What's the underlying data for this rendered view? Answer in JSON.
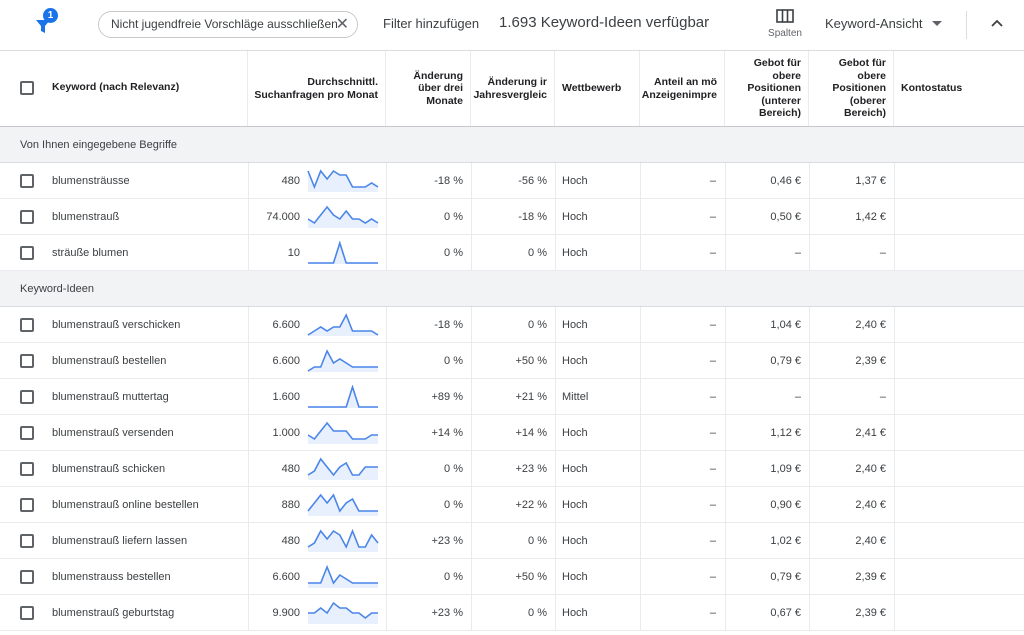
{
  "toolbar": {
    "filter_badge": "1",
    "chip_label": "Nicht jugendfreie Vorschläge ausschließen",
    "chip_close": "✕",
    "add_filter": "Filter hinzufügen",
    "ideas_count": "1.693 Keyword-Ideen verfügbar",
    "columns_label": "Spalten",
    "view_label": "Keyword-Ansicht"
  },
  "colors": {
    "accent": "#1a73e8",
    "sparkline": "#4a86e8"
  },
  "header": {
    "keyword": "Keyword (nach Relevanz)",
    "avg_searches": [
      "Durchschnittl.",
      "Suchanfragen pro Monat"
    ],
    "change_3m": [
      "Änderung",
      "über drei",
      "Monate"
    ],
    "change_yoy": [
      "Änderung ir",
      "Jahresvergleic"
    ],
    "competition": "Wettbewerb",
    "ad_share": [
      "Anteil an mö",
      "Anzeigenimpre"
    ],
    "bid_low": [
      "Gebot für",
      "obere",
      "Positionen",
      "(unterer",
      "Bereich)"
    ],
    "bid_high": [
      "Gebot für",
      "obere",
      "Positionen",
      "(oberer",
      "Bereich)"
    ],
    "account_status": "Kontostatus"
  },
  "sections": [
    {
      "title": "Von Ihnen eingegebene Begriffe",
      "rows": [
        {
          "keyword": "blumensträusse",
          "searches": "480",
          "trend": [
            5,
            1,
            5,
            3,
            5,
            4,
            4,
            1,
            1,
            1,
            2,
            1
          ],
          "change_3m": "-18 %",
          "change_yoy": "-56 %",
          "competition": "Hoch",
          "ad_share": "–",
          "bid_low": "0,46 €",
          "bid_high": "1,37 €"
        },
        {
          "keyword": "blumenstrauß",
          "searches": "74.000",
          "trend": [
            2,
            1,
            3,
            5,
            3,
            2,
            4,
            2,
            2,
            1,
            2,
            1
          ],
          "change_3m": "0 %",
          "change_yoy": "-18 %",
          "competition": "Hoch",
          "ad_share": "–",
          "bid_low": "0,50 €",
          "bid_high": "1,42 €"
        },
        {
          "keyword": "sträuße blumen",
          "searches": "10",
          "trend": [
            0,
            0,
            0,
            0,
            0,
            5,
            0,
            0,
            0,
            0,
            0,
            0
          ],
          "change_3m": "0 %",
          "change_yoy": "0 %",
          "competition": "Hoch",
          "ad_share": "–",
          "bid_low": "–",
          "bid_high": "–"
        }
      ]
    },
    {
      "title": "Keyword-Ideen",
      "rows": [
        {
          "keyword": "blumenstrauß verschicken",
          "searches": "6.600",
          "trend": [
            0,
            1,
            2,
            1,
            2,
            2,
            5,
            1,
            1,
            1,
            1,
            0
          ],
          "change_3m": "-18 %",
          "change_yoy": "0 %",
          "competition": "Hoch",
          "ad_share": "–",
          "bid_low": "1,04 €",
          "bid_high": "2,40 €"
        },
        {
          "keyword": "blumenstrauß bestellen",
          "searches": "6.600",
          "trend": [
            0,
            1,
            1,
            5,
            2,
            3,
            2,
            1,
            1,
            1,
            1,
            1
          ],
          "change_3m": "0 %",
          "change_yoy": "+50 %",
          "competition": "Hoch",
          "ad_share": "–",
          "bid_low": "0,79 €",
          "bid_high": "2,39 €"
        },
        {
          "keyword": "blumenstrauß muttertag",
          "searches": "1.600",
          "trend": [
            0,
            0,
            0,
            0,
            0,
            0,
            0,
            5,
            0,
            0,
            0,
            0
          ],
          "change_3m": "+89 %",
          "change_yoy": "+21 %",
          "competition": "Mittel",
          "ad_share": "–",
          "bid_low": "–",
          "bid_high": "–"
        },
        {
          "keyword": "blumenstrauß versenden",
          "searches": "1.000",
          "trend": [
            2,
            1,
            3,
            5,
            3,
            3,
            3,
            1,
            1,
            1,
            2,
            2
          ],
          "change_3m": "+14 %",
          "change_yoy": "+14 %",
          "competition": "Hoch",
          "ad_share": "–",
          "bid_low": "1,12 €",
          "bid_high": "2,41 €"
        },
        {
          "keyword": "blumenstrauß schicken",
          "searches": "480",
          "trend": [
            1,
            2,
            5,
            3,
            1,
            3,
            4,
            1,
            1,
            3,
            3,
            3
          ],
          "change_3m": "0 %",
          "change_yoy": "+23 %",
          "competition": "Hoch",
          "ad_share": "–",
          "bid_low": "1,09 €",
          "bid_high": "2,40 €"
        },
        {
          "keyword": "blumenstrauß online bestellen",
          "searches": "880",
          "trend": [
            1,
            3,
            5,
            3,
            5,
            1,
            3,
            4,
            1,
            1,
            1,
            1
          ],
          "change_3m": "0 %",
          "change_yoy": "+22 %",
          "competition": "Hoch",
          "ad_share": "–",
          "bid_low": "0,90 €",
          "bid_high": "2,40 €"
        },
        {
          "keyword": "blumenstrauß liefern lassen",
          "searches": "480",
          "trend": [
            1,
            2,
            5,
            3,
            5,
            4,
            1,
            5,
            1,
            1,
            4,
            2
          ],
          "change_3m": "+23 %",
          "change_yoy": "0 %",
          "competition": "Hoch",
          "ad_share": "–",
          "bid_low": "1,02 €",
          "bid_high": "2,40 €"
        },
        {
          "keyword": "blumenstrauss bestellen",
          "searches": "6.600",
          "trend": [
            1,
            1,
            1,
            5,
            1,
            3,
            2,
            1,
            1,
            1,
            1,
            1
          ],
          "change_3m": "0 %",
          "change_yoy": "+50 %",
          "competition": "Hoch",
          "ad_share": "–",
          "bid_low": "0,79 €",
          "bid_high": "2,39 €"
        },
        {
          "keyword": "blumenstrauß geburtstag",
          "searches": "9.900",
          "trend": [
            2,
            2,
            3,
            2,
            4,
            3,
            3,
            2,
            2,
            1,
            2,
            2
          ],
          "change_3m": "+23 %",
          "change_yoy": "0 %",
          "competition": "Hoch",
          "ad_share": "–",
          "bid_low": "0,67 €",
          "bid_high": "2,39 €"
        }
      ]
    }
  ]
}
